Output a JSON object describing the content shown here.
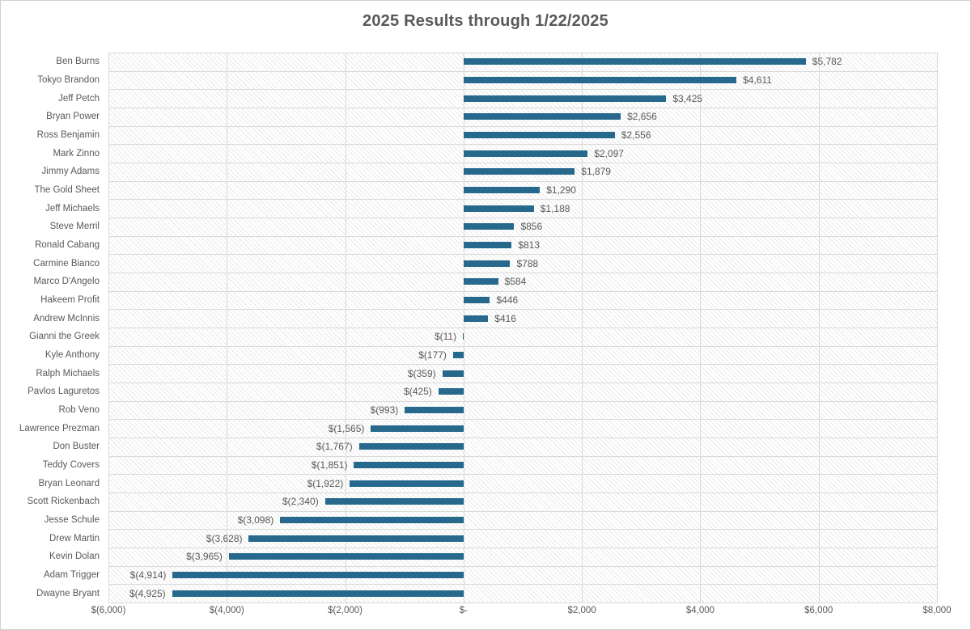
{
  "chart_data": {
    "type": "bar",
    "orientation": "horizontal",
    "title": "2025 Results through 1/22/2025",
    "categories": [
      "Ben Burns",
      "Tokyo Brandon",
      "Jeff Petch",
      "Bryan Power",
      "Ross Benjamin",
      "Mark Zinno",
      "Jimmy Adams",
      "The Gold Sheet",
      "Jeff Michaels",
      "Steve Merril",
      "Ronald Cabang",
      "Carmine Bianco",
      "Marco D'Angelo",
      "Hakeem Profit",
      "Andrew McInnis",
      "Gianni the Greek",
      "Kyle Anthony",
      "Ralph Michaels",
      "Pavlos Laguretos",
      "Rob Veno",
      "Lawrence Prezman",
      "Don Buster",
      "Teddy Covers",
      "Bryan Leonard",
      "Scott Rickenbach",
      "Jesse Schule",
      "Drew Martin",
      "Kevin Dolan",
      "Adam Trigger",
      "Dwayne Bryant"
    ],
    "values": [
      5782,
      4611,
      3425,
      2656,
      2556,
      2097,
      1879,
      1290,
      1188,
      856,
      813,
      788,
      584,
      446,
      416,
      -11,
      -177,
      -359,
      -425,
      -993,
      -1565,
      -1767,
      -1851,
      -1922,
      -2340,
      -3098,
      -3628,
      -3965,
      -4914,
      -4925
    ],
    "value_labels": [
      "$5,782",
      "$4,611",
      "$3,425",
      "$2,656",
      "$2,556",
      "$2,097",
      "$1,879",
      "$1,290",
      "$1,188",
      "$856",
      "$813",
      "$788",
      "$584",
      "$446",
      "$416",
      "$(11)",
      "$(177)",
      "$(359)",
      "$(425)",
      "$(993)",
      "$(1,565)",
      "$(1,767)",
      "$(1,851)",
      "$(1,922)",
      "$(2,340)",
      "$(3,098)",
      "$(3,628)",
      "$(3,965)",
      "$(4,914)",
      "$(4,925)"
    ],
    "xlim": [
      -6000,
      8000
    ],
    "x_ticks": [
      {
        "value": -6000,
        "label": "$(6,000)"
      },
      {
        "value": -4000,
        "label": "$(4,000)"
      },
      {
        "value": -2000,
        "label": "$(2,000)"
      },
      {
        "value": 0,
        "label": "$-"
      },
      {
        "value": 2000,
        "label": "$2,000"
      },
      {
        "value": 4000,
        "label": "$4,000"
      },
      {
        "value": 6000,
        "label": "$6,000"
      },
      {
        "value": 8000,
        "label": "$8,000"
      }
    ],
    "grid": true,
    "legend": "none",
    "bar_color": "#26698C",
    "text_color": "#595959",
    "gridline_color": "#D9D9D9",
    "plot_fill": "diagonal-hatch",
    "background_color": "#FFFFFF"
  }
}
